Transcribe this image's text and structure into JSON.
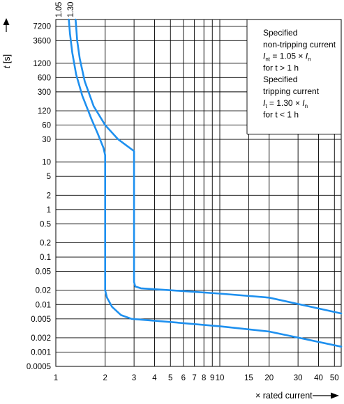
{
  "chart_data": {
    "type": "line",
    "title": "",
    "xscale": "log",
    "yscale": "log",
    "xlim": [
      1,
      55
    ],
    "ylim": [
      0.0005,
      10000
    ],
    "grid": true,
    "xticks": [
      1,
      2,
      3,
      4,
      5,
      6,
      7,
      8,
      9,
      10,
      15,
      20,
      30,
      40,
      50
    ],
    "xtick_labels": [
      "1",
      "2",
      "3",
      "4",
      "5",
      "6",
      "7",
      "8",
      "9",
      "10",
      "15",
      "20",
      "30",
      "40",
      "50"
    ],
    "yticks": [
      7200,
      3600,
      1200,
      600,
      300,
      120,
      60,
      30,
      10,
      5,
      2,
      1,
      0.5,
      0.2,
      0.1,
      0.05,
      0.02,
      0.01,
      0.005,
      0.002,
      0.001,
      0.0005
    ],
    "ytick_labels": [
      "7200",
      "3600",
      "1200",
      "600",
      "300",
      "120",
      "60",
      "30",
      "10",
      "5",
      "2",
      "1",
      "0.5",
      "0.2",
      "0.1",
      "0.05",
      "0.02",
      "0.01",
      "0.005",
      "0.002",
      "0.001",
      "0.0005"
    ],
    "xlabel": "× rated current",
    "ylabel_var": "t",
    "ylabel_unit": " [s]",
    "top_labels": [
      "1.05",
      "1.30"
    ],
    "series": [
      {
        "x": [
          1.2,
          1.22,
          1.26,
          1.33,
          1.45,
          1.65,
          1.8,
          1.95,
          2.0,
          2.0,
          2.0,
          2.05,
          2.2,
          2.5,
          2.9,
          5,
          10,
          20,
          55
        ],
        "y": [
          10000,
          5000,
          2000,
          700,
          250,
          80,
          40,
          20,
          14,
          1,
          0.02,
          0.014,
          0.009,
          0.006,
          0.005,
          0.0043,
          0.0035,
          0.0027,
          0.0013
        ]
      },
      {
        "x": [
          1.32,
          1.33,
          1.35,
          1.4,
          1.5,
          1.7,
          2.0,
          2.4,
          3.0,
          3.0,
          3.0,
          3.05,
          3.3,
          5,
          10,
          20,
          55
        ],
        "y": [
          10000,
          7200,
          3600,
          1500,
          500,
          150,
          60,
          30,
          17,
          1,
          0.03,
          0.024,
          0.022,
          0.02,
          0.017,
          0.014,
          0.0065
        ]
      }
    ],
    "line_color": "#1e90ef",
    "legend_box": {
      "lines": [
        [
          {
            "t": "Specified"
          }
        ],
        [
          {
            "t": "non-tripping current"
          }
        ],
        [
          {
            "t": "I",
            "i": true
          },
          {
            "t": "nt",
            "sub": true
          },
          {
            "t": " = 1.05 × "
          },
          {
            "t": "I",
            "i": true
          },
          {
            "t": "n",
            "sub": true
          }
        ],
        [
          {
            "t": "for t > 1 h"
          }
        ],
        [
          {
            "t": "Specified"
          }
        ],
        [
          {
            "t": "tripping current"
          }
        ],
        [
          {
            "t": "I",
            "i": true
          },
          {
            "t": "t",
            "sub": true
          },
          {
            "t": " = 1.30 × "
          },
          {
            "t": "I",
            "i": true
          },
          {
            "t": "n",
            "sub": true
          }
        ],
        [
          {
            "t": "for t < 1 h"
          }
        ]
      ]
    }
  }
}
